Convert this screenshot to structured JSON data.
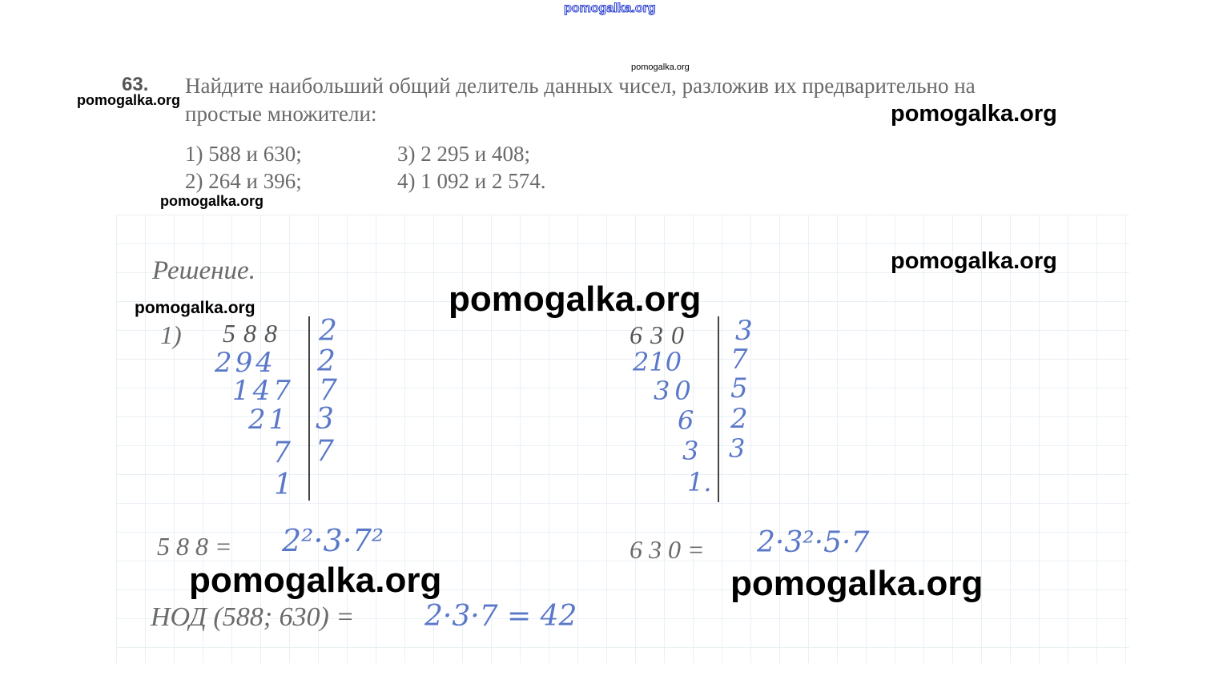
{
  "watermarks": {
    "top": "pomogalka.org",
    "small_center": "pomogalka.org",
    "items": [
      "pomogalka.org",
      "pomogalka.org",
      "pomogalka.org",
      "pomogalka.org",
      "pomogalka.org",
      "pomogalka.org",
      "pomogalka.org",
      "pomogalka.org"
    ]
  },
  "problem": {
    "number": "63.",
    "text_line1": "Найдите наибольший общий делитель данных чисел, разложив их предварительно на",
    "text_line2": "простые множители:",
    "items": [
      "1) 588 и 630;",
      "3) 2 295 и 408;",
      "2) 264 и 396;",
      "4) 1 092 и 2 574."
    ]
  },
  "solution": {
    "heading": "Решение.",
    "part_label": "1)",
    "left": {
      "number": "588",
      "quotients": [
        "294",
        "147",
        "21",
        "7",
        "1"
      ],
      "divisors": [
        "2",
        "2",
        "7",
        "3",
        "7"
      ],
      "equation_label": "5 8 8 =",
      "factorization": "2²·3·7²"
    },
    "right": {
      "number": "630",
      "quotients": [
        "210",
        "30",
        "6",
        "3",
        "1."
      ],
      "divisors": [
        "3",
        "7",
        "5",
        "2",
        "3"
      ],
      "equation_label": "6 3 0 =",
      "factorization": "2·3²·5·7"
    },
    "gcd_label": "НОД (588; 630) =",
    "gcd_value": "2·3·7 = 42"
  },
  "colors": {
    "handwriting": "#5a78c8",
    "print": "#6a6a6a",
    "watermark": "#000000",
    "top_watermark": "#2a40d0"
  }
}
